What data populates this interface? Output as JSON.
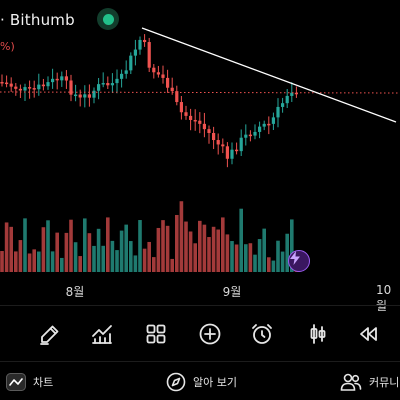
{
  "header": {
    "exchange_title": "· Bithumb",
    "percent_label": "%)"
  },
  "colors": {
    "up": "#26a69a",
    "down": "#ef5350",
    "volume_up": "#1f7a6f",
    "volume_down": "#a33a3a",
    "trendline": "#ffffff",
    "price_line": "#ef5350",
    "accent_purple": "#9b5cf0",
    "live_green": "#22c08a"
  },
  "time_axis": [
    "8월",
    "9월",
    "10월"
  ],
  "toolbar": {
    "tools": [
      "pencil-icon",
      "indicators-icon",
      "grid-icon",
      "plus-circle-icon",
      "alarm-clock-icon",
      "candlestick-icon",
      "rewind-icon"
    ]
  },
  "tabbar": {
    "chart_label": "차트",
    "explore_label": "알아 보기",
    "community_label": "커뮤니"
  }
}
